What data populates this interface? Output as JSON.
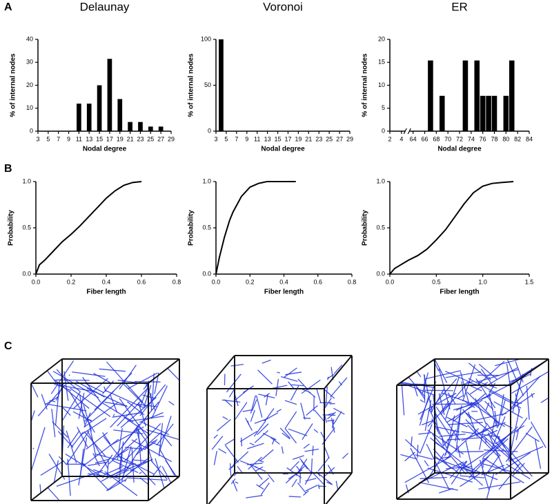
{
  "panel_labels": [
    "A",
    "B",
    "C"
  ],
  "chart_data": [
    {
      "type": "bar",
      "title": "Delaunay",
      "x_label": "Nodal degree",
      "y_label": "% of internal nodes",
      "x": [
        11,
        13,
        15,
        17,
        19,
        21,
        23,
        25,
        27
      ],
      "values": [
        12,
        12,
        20,
        31.5,
        14,
        4,
        4,
        2,
        2
      ],
      "color": "#000000",
      "xlim": [
        3,
        29
      ],
      "xticks": [
        3,
        5,
        7,
        9,
        11,
        13,
        15,
        17,
        19,
        21,
        23,
        25,
        27,
        29
      ],
      "ylim": [
        0,
        40
      ],
      "yticks": [
        0,
        10,
        20,
        30,
        40
      ]
    },
    {
      "type": "bar",
      "title": "Voronoi",
      "x_label": "Nodal degree",
      "y_label": "% of internal nodes",
      "x": [
        4
      ],
      "values": [
        100
      ],
      "color": "#000000",
      "xlim": [
        3,
        29
      ],
      "xticks": [
        3,
        5,
        7,
        9,
        11,
        13,
        15,
        17,
        19,
        21,
        23,
        25,
        27,
        29
      ],
      "ylim": [
        0,
        100
      ],
      "yticks": [
        0,
        50,
        100
      ]
    },
    {
      "type": "bar",
      "title": "ER",
      "x_label": "Nodal degree",
      "y_label": "% of internal nodes",
      "x": [
        67,
        69,
        73,
        75,
        76,
        77,
        78,
        80,
        81
      ],
      "values": [
        15.4,
        7.7,
        15.4,
        15.4,
        7.7,
        7.7,
        7.7,
        7.7,
        15.4
      ],
      "color": "#000000",
      "xlim": [
        2,
        84
      ],
      "xbreak": [
        5,
        63
      ],
      "xticks": [
        2,
        4,
        64,
        66,
        68,
        70,
        72,
        74,
        76,
        78,
        80,
        82,
        84
      ],
      "ylim": [
        0,
        20
      ],
      "yticks": [
        0,
        5,
        10,
        15,
        20
      ]
    },
    {
      "type": "line",
      "x_label": "Fiber length",
      "y_label": "Probability",
      "color": "#000000",
      "x": [
        0,
        0.02,
        0.05,
        0.1,
        0.15,
        0.2,
        0.25,
        0.3,
        0.35,
        0.4,
        0.45,
        0.5,
        0.55,
        0.6
      ],
      "values": [
        0,
        0.1,
        0.15,
        0.25,
        0.35,
        0.43,
        0.52,
        0.62,
        0.72,
        0.82,
        0.9,
        0.96,
        0.99,
        1.0
      ],
      "xlim": [
        0,
        0.8
      ],
      "xticks": [
        {
          "value": 0,
          "label": "0.0"
        },
        0.2,
        0.4,
        0.6,
        0.8
      ],
      "ylim": [
        0,
        1
      ],
      "yticks": [
        {
          "value": 0,
          "label": "0.0"
        },
        0.5,
        {
          "value": 1,
          "label": "1.0"
        }
      ]
    },
    {
      "type": "line",
      "x_label": "Fiber length",
      "y_label": "Probability",
      "color": "#000000",
      "x": [
        0,
        0.02,
        0.05,
        0.08,
        0.1,
        0.15,
        0.2,
        0.25,
        0.3,
        0.47
      ],
      "values": [
        0,
        0.18,
        0.4,
        0.58,
        0.67,
        0.84,
        0.94,
        0.98,
        1.0,
        1.0
      ],
      "xlim": [
        0,
        0.8
      ],
      "xticks": [
        {
          "value": 0,
          "label": "0.0"
        },
        0.2,
        0.4,
        0.6,
        0.8
      ],
      "ylim": [
        0,
        1
      ],
      "yticks": [
        {
          "value": 0,
          "label": "0.0"
        },
        0.5,
        {
          "value": 1,
          "label": "1.0"
        }
      ]
    },
    {
      "type": "line",
      "x_label": "Fiber length",
      "y_label": "Probability",
      "color": "#000000",
      "x": [
        0,
        0.05,
        0.1,
        0.2,
        0.3,
        0.4,
        0.5,
        0.6,
        0.7,
        0.8,
        0.9,
        1.0,
        1.1,
        1.2,
        1.33
      ],
      "values": [
        0,
        0.06,
        0.09,
        0.15,
        0.2,
        0.27,
        0.37,
        0.48,
        0.62,
        0.76,
        0.88,
        0.95,
        0.98,
        0.99,
        1.0
      ],
      "xlim": [
        0,
        1.5
      ],
      "xticks": [
        {
          "value": 0,
          "label": "0.0"
        },
        0.5,
        {
          "value": 1,
          "label": "1.0"
        },
        1.5
      ],
      "ylim": [
        0,
        1
      ],
      "yticks": [
        {
          "value": 0,
          "label": "0.0"
        },
        0.5,
        {
          "value": 1,
          "label": "1.0"
        }
      ]
    }
  ]
}
